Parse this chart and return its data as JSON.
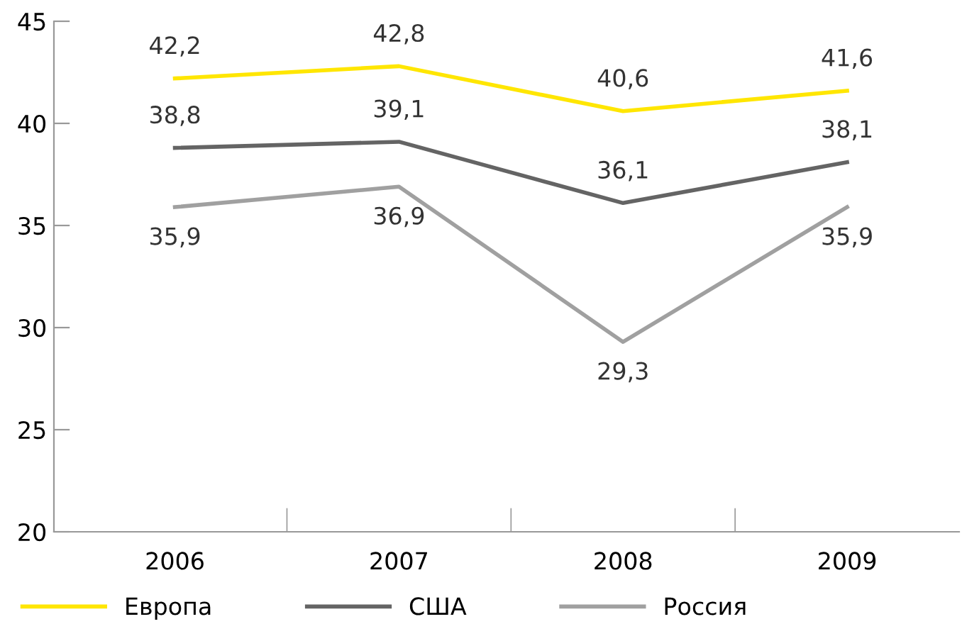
{
  "chart_data": {
    "type": "line",
    "categories": [
      "2006",
      "2007",
      "2008",
      "2009"
    ],
    "series": [
      {
        "name": "Европа",
        "color": "#ffe600",
        "values": [
          42.2,
          42.8,
          40.6,
          41.6
        ],
        "value_labels": [
          "42,2",
          "42,8",
          "40,6",
          "41,6"
        ]
      },
      {
        "name": "США",
        "color": "#646464",
        "values": [
          38.8,
          39.1,
          36.1,
          38.1
        ],
        "value_labels": [
          "38,8",
          "39,1",
          "36,1",
          "38,1"
        ]
      },
      {
        "name": "Россия",
        "color": "#a0a0a0",
        "values": [
          35.9,
          36.9,
          29.3,
          35.9
        ],
        "value_labels": [
          "35,9",
          "36,9",
          "29,3",
          "35,9"
        ]
      }
    ],
    "ylim": [
      20,
      45
    ],
    "yticks": [
      20,
      25,
      30,
      35,
      40,
      45
    ],
    "grid": false,
    "legend": "bottom",
    "marker": "none",
    "line_style": "solid"
  }
}
